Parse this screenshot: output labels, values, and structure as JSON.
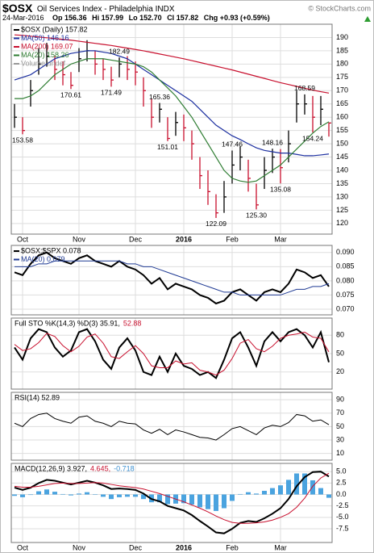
{
  "header": {
    "symbol": "$OSX",
    "name": "Oil Services Index - Philadelphia INDX",
    "date": "24-Mar-2016",
    "open": "Op 156.36",
    "high": "Hi 157.99",
    "low": "Lo 152.70",
    "close": "Cl 157.82",
    "change": "Chg +0.93 (+0.59%)",
    "watermark": "© StockCharts.com"
  },
  "chart_data": [
    {
      "type": "ohlc",
      "legend_layout": "column",
      "grid": true,
      "categories": [
        null,
        "Oct",
        null,
        null,
        null,
        null,
        null,
        null,
        "Nov",
        null,
        null,
        null,
        null,
        null,
        null,
        "Dec",
        null,
        null,
        null,
        null,
        null,
        "2016",
        null,
        null,
        null,
        null,
        null,
        "Feb",
        null,
        null,
        null,
        null,
        null,
        "Mar",
        null,
        null,
        null,
        null,
        null,
        null
      ],
      "ylim": [
        116,
        195
      ],
      "yticks": [
        120,
        125,
        130,
        135,
        140,
        145,
        150,
        155,
        160,
        165,
        170,
        175,
        180,
        185,
        190
      ],
      "legend": [
        {
          "text": "$OSX (Daily) 157.82",
          "color": "#000000"
        },
        {
          "text": "MA(50) 146.16",
          "color": "#1c2fa0"
        },
        {
          "text": "MA(200) 169.07",
          "color": "#c8102e"
        },
        {
          "text": "MA(20) 158.26",
          "color": "#2e7d32"
        },
        {
          "text": "Volume undef",
          "color": "#999999"
        }
      ],
      "series": [
        {
          "color": "#000000",
          "values": [
            160,
            155,
            170,
            180,
            183,
            178,
            176,
            172,
            182,
            185,
            180,
            178,
            174,
            180,
            178,
            177,
            170,
            160,
            163,
            152,
            158,
            156,
            150,
            138,
            132,
            124,
            130,
            142,
            145,
            137,
            127,
            140,
            145,
            141,
            150,
            165,
            165,
            160,
            163,
            157.82
          ],
          "high": [
            165,
            160,
            174,
            186,
            188,
            183,
            181,
            177,
            186,
            189,
            185,
            182,
            179,
            182.49,
            183,
            181,
            175,
            167,
            165.36,
            160,
            162,
            161,
            155,
            145,
            140,
            131,
            136,
            147.46,
            149,
            144,
            135,
            145,
            148.16,
            148,
            155,
            170,
            168.59,
            168,
            168,
            157.99
          ],
          "low": [
            156,
            153.58,
            164,
            176,
            179,
            174,
            172,
            170.61,
            177,
            181,
            176,
            174,
            171.49,
            175,
            174,
            172,
            164,
            156,
            158,
            151.01,
            153,
            151,
            144,
            133,
            127,
            122.09,
            124,
            135,
            140,
            132,
            125.3,
            133,
            139,
            135.08,
            143,
            158,
            161,
            154.24,
            157,
            152.7
          ]
        },
        {
          "color": "#1c2fa0",
          "values": [
            174,
            175,
            176,
            178,
            180,
            182,
            183,
            184,
            184.5,
            185,
            185,
            184.5,
            184,
            183,
            182,
            180,
            178,
            176,
            174,
            172,
            170,
            168,
            166,
            163,
            160,
            157,
            155,
            153,
            151.6,
            150,
            148.5,
            147.5,
            147,
            146.5,
            146.5,
            146,
            145.5,
            145.5,
            145.8,
            146.16
          ]
        },
        {
          "color": "#c8102e",
          "values": [
            191,
            190.8,
            190.5,
            190.2,
            189.9,
            189.6,
            189.3,
            189,
            188.6,
            188.2,
            187.8,
            187.4,
            187,
            186.5,
            186,
            185.5,
            185,
            184.4,
            183.8,
            183.2,
            182.6,
            182,
            181.3,
            180.6,
            179.9,
            179.2,
            178.5,
            177.8,
            177,
            176.2,
            175.4,
            174.6,
            173.8,
            173,
            172.3,
            171.6,
            170.9,
            170.2,
            169.6,
            169.07
          ]
        },
        {
          "color": "#2e7d32",
          "values": [
            167,
            167,
            168,
            170,
            173,
            176,
            178,
            180,
            181,
            182,
            182,
            182,
            181.5,
            181,
            180.5,
            180,
            179,
            177,
            174,
            171,
            168,
            164,
            160,
            155,
            150,
            145,
            140,
            137,
            136,
            135.5,
            136,
            138,
            140,
            142,
            145,
            148,
            151,
            154,
            156.5,
            158.26
          ]
        }
      ],
      "annotations": [
        {
          "index": 1,
          "value": 153.58,
          "label": "153.58"
        },
        {
          "index": 7,
          "value": 170.61,
          "label": "170.61"
        },
        {
          "index": 12,
          "value": 171.49,
          "label": "171.49"
        },
        {
          "index": 13,
          "value": 182.49,
          "label": "182.49"
        },
        {
          "index": 18,
          "value": 165.36,
          "label": "165.36"
        },
        {
          "index": 19,
          "value": 151.01,
          "label": "151.01"
        },
        {
          "index": 25,
          "value": 122.09,
          "label": "122.09"
        },
        {
          "index": 27,
          "value": 147.46,
          "label": "147.46"
        },
        {
          "index": 30,
          "value": 125.3,
          "label": "125.30"
        },
        {
          "index": 32,
          "value": 148.16,
          "label": "148.16"
        },
        {
          "index": 33,
          "value": 135.08,
          "label": "135.08"
        },
        {
          "index": 36,
          "value": 168.59,
          "label": "168.59"
        },
        {
          "index": 37,
          "value": 154.24,
          "label": "154.24"
        }
      ]
    },
    {
      "type": "line",
      "legend_layout": "column",
      "grid": true,
      "ylim": [
        0.068,
        0.0925
      ],
      "yticks": [
        {
          "value": 0.07,
          "label": "0.070"
        },
        0.075,
        {
          "value": 0.08,
          "label": "0.080"
        },
        0.085,
        {
          "value": 0.09,
          "label": "0.090"
        }
      ],
      "legend": [
        {
          "text": "$OSX:$SPX 0.078",
          "color": "#000000"
        },
        {
          "text": "MA(20) 0.079",
          "color": "#1f3a93"
        }
      ],
      "series": [
        {
          "color": "#000000",
          "width": 2,
          "values": [
            0.083,
            0.082,
            0.086,
            0.089,
            0.09,
            0.088,
            0.087,
            0.086,
            0.088,
            0.089,
            0.087,
            0.086,
            0.085,
            0.087,
            0.085,
            0.084,
            0.082,
            0.079,
            0.081,
            0.077,
            0.079,
            0.078,
            0.077,
            0.075,
            0.074,
            0.072,
            0.073,
            0.076,
            0.077,
            0.075,
            0.073,
            0.076,
            0.077,
            0.076,
            0.079,
            0.084,
            0.083,
            0.081,
            0.082,
            0.078
          ]
        },
        {
          "color": "#1f3a93",
          "width": 1,
          "values": [
            0.085,
            0.085,
            0.085,
            0.086,
            0.086,
            0.087,
            0.087,
            0.087,
            0.087,
            0.087,
            0.087,
            0.087,
            0.087,
            0.087,
            0.086,
            0.086,
            0.085,
            0.085,
            0.084,
            0.083,
            0.082,
            0.081,
            0.08,
            0.079,
            0.078,
            0.077,
            0.076,
            0.076,
            0.075,
            0.075,
            0.075,
            0.075,
            0.075,
            0.075,
            0.076,
            0.077,
            0.077,
            0.078,
            0.078,
            0.079
          ]
        }
      ]
    },
    {
      "type": "line",
      "legend_layout": "row",
      "grid": true,
      "ylim": [
        -8,
        108
      ],
      "yticks": [
        20,
        50,
        80
      ],
      "legend": [
        {
          "text": "Full STO %K(14,3) %D(3) 35.91,",
          "color": "#000000"
        },
        {
          "text": "52.88",
          "color": "#c8102e"
        }
      ],
      "series": [
        {
          "color": "#000000",
          "width": 2,
          "values": [
            60,
            40,
            75,
            90,
            85,
            60,
            45,
            55,
            85,
            90,
            70,
            40,
            25,
            60,
            75,
            55,
            20,
            15,
            45,
            20,
            50,
            30,
            25,
            15,
            20,
            10,
            40,
            75,
            85,
            60,
            30,
            70,
            85,
            70,
            85,
            90,
            80,
            60,
            85,
            35.91
          ]
        },
        {
          "color": "#c8102e",
          "width": 1,
          "values": [
            65,
            55,
            58,
            68,
            83,
            78,
            63,
            53,
            62,
            77,
            82,
            67,
            45,
            42,
            53,
            63,
            50,
            30,
            27,
            27,
            38,
            33,
            35,
            23,
            20,
            15,
            23,
            42,
            67,
            73,
            58,
            53,
            62,
            75,
            80,
            82,
            85,
            77,
            75,
            52.88
          ]
        }
      ]
    },
    {
      "type": "line",
      "legend_layout": "row",
      "grid": true,
      "ylim": [
        0,
        101
      ],
      "yticks": [
        10,
        30,
        50,
        70,
        90
      ],
      "legend": [
        {
          "text": "RSI(14) 52.89",
          "color": "#000000"
        }
      ],
      "series": [
        {
          "color": "#000000",
          "width": 1,
          "values": [
            55,
            50,
            62,
            68,
            70,
            62,
            58,
            55,
            64,
            66,
            58,
            55,
            50,
            58,
            55,
            54,
            45,
            40,
            46,
            38,
            45,
            42,
            38,
            34,
            33,
            30,
            38,
            47,
            50,
            44,
            38,
            48,
            52,
            50,
            56,
            68,
            66,
            58,
            60,
            52.89
          ]
        }
      ]
    },
    {
      "type": "macd",
      "legend_layout": "row",
      "grid": true,
      "ylim": [
        -10.5,
        6.8
      ],
      "yticks": [
        {
          "value": 5,
          "label": "5.0"
        },
        2.5,
        {
          "value": 0,
          "label": "0.0"
        },
        -2.5,
        {
          "value": -5,
          "label": "-5.0"
        },
        -7.5
      ],
      "legend": [
        {
          "text": "MACD(12,26,9) 3.927,",
          "color": "#000000"
        },
        {
          "text": "4.645,",
          "color": "#c8102e"
        },
        {
          "text": "-0.718",
          "color": "#3a8fd0"
        }
      ],
      "series": [
        {
          "color": "#4aa3df",
          "style": "bar",
          "values": [
            -0.3,
            -0.6,
            -0.1,
            0.7,
            1.1,
            0.6,
            0.1,
            -0.2,
            0.2,
            0.5,
            0,
            -0.5,
            -1.0,
            -0.6,
            -0.5,
            -0.5,
            -1.0,
            -1.7,
            -1.7,
            -2.1,
            -2.0,
            -1.9,
            -2.2,
            -2.8,
            -3.2,
            -3.6,
            -3.0,
            -1.4,
            0.1,
            0.5,
            0.2,
            0.8,
            1.4,
            2.0,
            3.2,
            4.6,
            4.6,
            3.1,
            1.4,
            -0.718
          ]
        },
        {
          "color": "#000000",
          "width": 2,
          "values": [
            1.5,
            1.0,
            1.5,
            2.5,
            3.2,
            3.0,
            2.6,
            2.2,
            2.6,
            3.0,
            2.6,
            2.0,
            1.2,
            1.3,
            1.2,
            1.0,
            0.2,
            -1.0,
            -1.5,
            -2.5,
            -3.0,
            -3.5,
            -4.5,
            -5.8,
            -7.0,
            -8.3,
            -8.5,
            -7.5,
            -6.2,
            -5.8,
            -6.0,
            -5.2,
            -4.2,
            -3.0,
            -1.0,
            1.8,
            3.8,
            4.9,
            5.0,
            3.927
          ]
        },
        {
          "color": "#c8102e",
          "width": 1,
          "values": [
            1.8,
            1.6,
            1.6,
            1.8,
            2.1,
            2.4,
            2.5,
            2.4,
            2.4,
            2.5,
            2.6,
            2.5,
            2.2,
            1.9,
            1.7,
            1.5,
            1.2,
            0.7,
            0.2,
            -0.4,
            -1.0,
            -1.6,
            -2.3,
            -3.0,
            -3.8,
            -4.7,
            -5.5,
            -6.1,
            -6.3,
            -6.3,
            -6.2,
            -6.0,
            -5.6,
            -5.0,
            -4.2,
            -2.8,
            -0.8,
            1.8,
            3.6,
            4.645
          ]
        }
      ]
    }
  ]
}
